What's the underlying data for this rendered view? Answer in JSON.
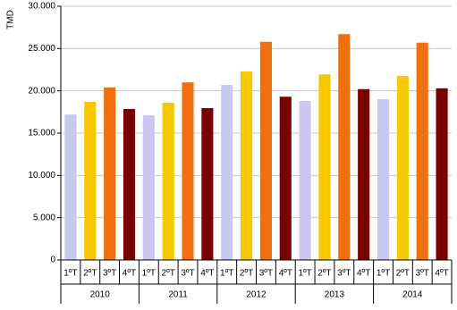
{
  "chart_data": {
    "type": "bar",
    "ylabel": "TMD",
    "categories": [
      "2010",
      "2011",
      "2012",
      "2013",
      "2014"
    ],
    "series": [
      {
        "name": "1ºT",
        "color": "#c8c8f0",
        "values": [
          17200,
          17100,
          20700,
          18800,
          19000
        ]
      },
      {
        "name": "2ºT",
        "color": "#f5c800",
        "values": [
          18700,
          18600,
          22300,
          21950,
          21750
        ]
      },
      {
        "name": "3ºT",
        "color": "#f07010",
        "values": [
          20400,
          21000,
          25800,
          26700,
          25700
        ]
      },
      {
        "name": "4ºT",
        "color": "#7a0000",
        "values": [
          17850,
          17950,
          19300,
          20200,
          20300
        ]
      }
    ],
    "ylim": [
      0,
      30000
    ],
    "yticks": [
      0,
      {
        "value": 5000,
        "label": "5.000"
      },
      {
        "value": 10000,
        "label": "10.000"
      },
      {
        "value": 15000,
        "label": "15.000"
      },
      {
        "value": 20000,
        "label": "20.000"
      },
      {
        "value": 25000,
        "label": "25.000"
      },
      {
        "value": 30000,
        "label": "30.000"
      }
    ],
    "grid": true
  }
}
